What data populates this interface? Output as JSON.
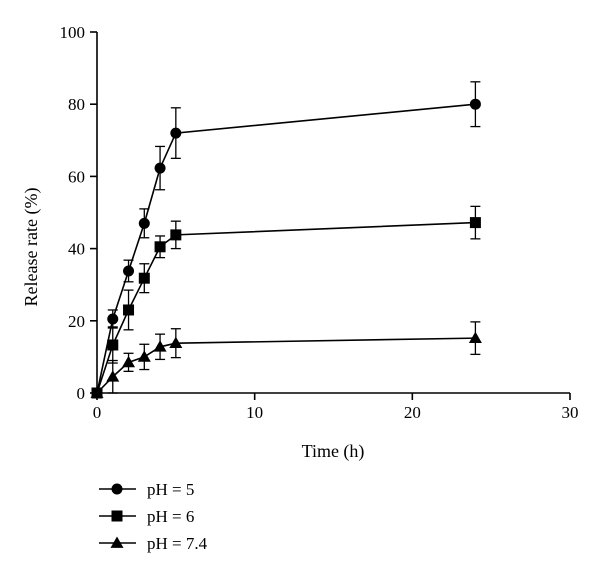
{
  "chart_data": {
    "type": "line",
    "title": "",
    "xlabel": "Time (h)",
    "ylabel": "Release rate (%)",
    "xlim": [
      0,
      30
    ],
    "ylim": [
      0,
      100
    ],
    "xticks": [
      0,
      10,
      20,
      30
    ],
    "yticks": [
      0,
      20,
      40,
      60,
      80,
      100
    ],
    "grid": false,
    "legend_position": "bottom-left",
    "series": [
      {
        "name": "pH = 5",
        "marker": "circle",
        "x": [
          0,
          1,
          2,
          3,
          4,
          5,
          24
        ],
        "y": [
          0,
          20.5,
          33.8,
          47,
          62.3,
          72,
          80
        ],
        "err": [
          0,
          2.5,
          3,
          4,
          6,
          7,
          6.2
        ]
      },
      {
        "name": "pH = 6",
        "marker": "square",
        "x": [
          0,
          1,
          2,
          3,
          4,
          5,
          24
        ],
        "y": [
          0,
          13.3,
          23,
          31.8,
          40.5,
          43.8,
          47.2
        ],
        "err": [
          0,
          5,
          5.5,
          4,
          3,
          3.8,
          4.5
        ]
      },
      {
        "name": "pH = 7.4",
        "marker": "triangle",
        "x": [
          0,
          1,
          2,
          3,
          4,
          5,
          24
        ],
        "y": [
          0,
          4.5,
          8.5,
          10,
          12.8,
          13.8,
          15.2
        ],
        "err": [
          0,
          4.5,
          2.5,
          3.5,
          3.5,
          4,
          4.5
        ]
      }
    ]
  }
}
